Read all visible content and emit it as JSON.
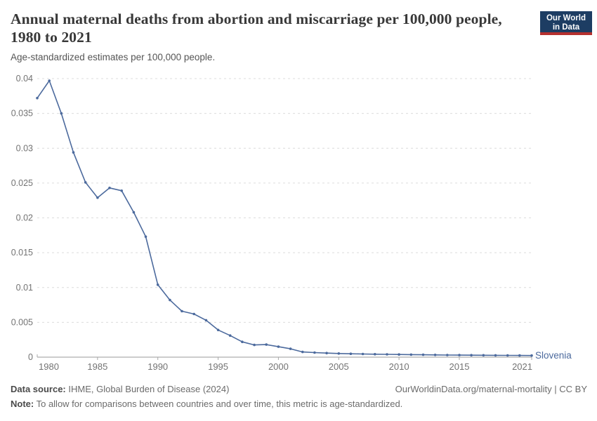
{
  "header": {
    "title": "Annual maternal deaths from abortion and miscarriage per 100,000 people, 1980 to 2021",
    "subtitle": "Age-standardized estimates per 100,000 people.",
    "logo_line1": "Our World",
    "logo_line2": "in Data"
  },
  "colors": {
    "series_blue": "#4c6a9d",
    "logo_bg": "#1d3d63",
    "logo_bar": "#b5312f",
    "grid": "#dcdcdc",
    "axis": "#9a9a9a",
    "tick": "#a8a8a8",
    "tick_text": "#737373"
  },
  "chart_data": {
    "type": "line",
    "title": "Annual maternal deaths from abortion and miscarriage per 100,000 people, 1980 to 2021",
    "subtitle": "Age-standardized estimates per 100,000 people.",
    "xlabel": "",
    "ylabel": "",
    "xlim": [
      1980,
      2021
    ],
    "ylim": [
      0,
      0.04
    ],
    "grid": "horizontal-dashed",
    "legend_position": "line-end-label",
    "yticks": [
      0,
      0.005,
      0.01,
      0.015,
      0.02,
      0.025,
      0.03,
      0.035,
      0.04
    ],
    "ytick_labels": [
      "0",
      "0.005",
      "0.01",
      "0.015",
      "0.02",
      "0.025",
      "0.03",
      "0.035",
      "0.04"
    ],
    "xticks": [
      1980,
      1985,
      1990,
      1995,
      2000,
      2005,
      2010,
      2015,
      2021
    ],
    "xtick_labels": [
      "1980",
      "1985",
      "1990",
      "1995",
      "2000",
      "2005",
      "2010",
      "2015",
      "2021"
    ],
    "x": [
      1980,
      1981,
      1982,
      1983,
      1984,
      1985,
      1986,
      1987,
      1988,
      1989,
      1990,
      1991,
      1992,
      1993,
      1994,
      1995,
      1996,
      1997,
      1998,
      1999,
      2000,
      2001,
      2002,
      2003,
      2004,
      2005,
      2006,
      2007,
      2008,
      2009,
      2010,
      2011,
      2012,
      2013,
      2014,
      2015,
      2016,
      2017,
      2018,
      2019,
      2020,
      2021
    ],
    "series": [
      {
        "name": "Slovenia",
        "color": "#4c6a9d",
        "values": [
          0.0372,
          0.0397,
          0.035,
          0.0294,
          0.0251,
          0.0229,
          0.0243,
          0.0239,
          0.0208,
          0.0173,
          0.0104,
          0.0082,
          0.0066,
          0.0062,
          0.0053,
          0.0039,
          0.0031,
          0.0022,
          0.00175,
          0.0018,
          0.0015,
          0.0012,
          0.00075,
          0.00065,
          0.00058,
          0.00052,
          0.00048,
          0.00045,
          0.00042,
          0.0004,
          0.00038,
          0.00036,
          0.00034,
          0.00032,
          0.0003,
          0.00029,
          0.00028,
          0.00027,
          0.00026,
          0.00025,
          0.00024,
          0.00023
        ]
      }
    ]
  },
  "footer": {
    "datasource_label": "Data source:",
    "datasource_value": " IHME, Global Burden of Disease (2024)",
    "rights": "OurWorldinData.org/maternal-mortality | CC BY",
    "note_label": "Note:",
    "note_value": " To allow for comparisons between countries and over time, this metric is age-standardized."
  }
}
